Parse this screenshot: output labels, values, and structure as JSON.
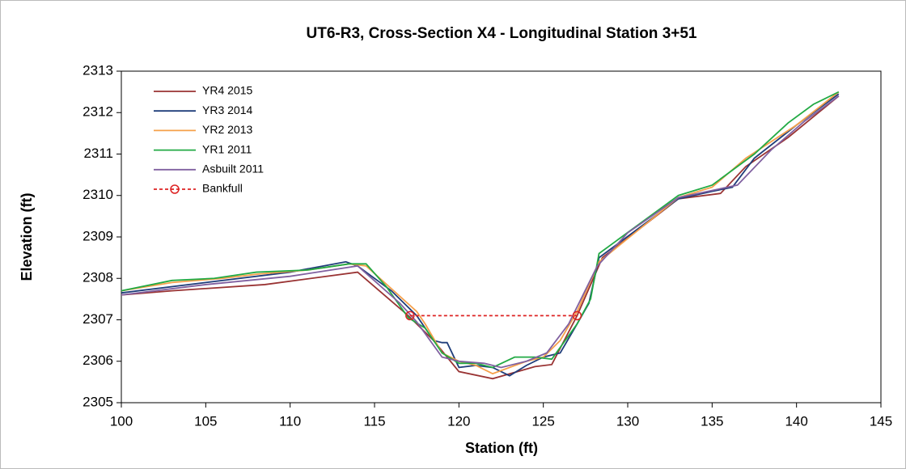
{
  "chart_data": {
    "type": "line",
    "title": "UT6-R3, Cross-Section X4 - Longitudinal Station 3+51",
    "xlabel": "Station (ft)",
    "ylabel": "Elevation (ft)",
    "xlim": [
      100,
      145
    ],
    "xticks": [
      100,
      105,
      110,
      115,
      120,
      125,
      130,
      135,
      140,
      145
    ],
    "ylim": [
      2305,
      2313
    ],
    "yticks": [
      2305,
      2306,
      2307,
      2308,
      2309,
      2310,
      2311,
      2312,
      2313
    ],
    "legend": "upper left",
    "series": [
      {
        "name": "YR4 2015",
        "color": "#993333",
        "x": [
          100,
          103,
          108.5,
          114,
          117,
          118.5,
          120,
          122,
          124.5,
          125.5,
          127,
          128.5,
          133,
          135.5,
          137,
          139.5,
          142.5
        ],
        "values": [
          2307.6,
          2307.7,
          2307.85,
          2308.15,
          2307.1,
          2306.5,
          2305.75,
          2305.58,
          2305.87,
          2305.92,
          2307.1,
          2308.5,
          2309.92,
          2310.05,
          2310.7,
          2311.4,
          2312.4
        ]
      },
      {
        "name": "YR3 2014",
        "color": "#1f3d7a",
        "x": [
          100,
          105,
          110,
          113.3,
          114,
          116,
          117.5,
          118.5,
          119,
          119.3,
          120,
          121,
          122,
          123,
          124,
          125,
          126,
          127,
          127.7,
          128.3,
          133,
          135,
          136.2,
          137.5,
          140,
          142.5
        ],
        "values": [
          2307.65,
          2307.9,
          2308.15,
          2308.4,
          2308.3,
          2307.7,
          2307.1,
          2306.5,
          2306.45,
          2306.45,
          2305.85,
          2305.9,
          2305.85,
          2305.65,
          2305.9,
          2306.1,
          2306.2,
          2306.9,
          2307.4,
          2308.5,
          2309.92,
          2310.1,
          2310.2,
          2310.9,
          2311.7,
          2312.45
        ]
      },
      {
        "name": "YR2 2013",
        "color": "#f5a04a",
        "x": [
          100,
          103,
          106,
          108,
          111,
          113.5,
          114.5,
          117.5,
          118,
          119,
          120,
          121,
          122,
          124,
          125,
          126,
          127,
          128.3,
          133,
          135,
          137,
          140,
          142.5
        ],
        "values": [
          2307.7,
          2307.9,
          2308.0,
          2308.1,
          2308.2,
          2308.35,
          2308.3,
          2307.2,
          2306.9,
          2306.2,
          2306.0,
          2305.9,
          2305.7,
          2306.0,
          2306.1,
          2306.5,
          2307.2,
          2308.4,
          2309.95,
          2310.2,
          2310.9,
          2311.7,
          2312.5
        ]
      },
      {
        "name": "YR1 2011",
        "color": "#22aa44",
        "x": [
          100,
          103,
          105.5,
          108,
          111,
          113.5,
          114.5,
          115.7,
          117,
          118,
          119,
          120,
          121,
          122,
          123.3,
          124.5,
          125.5,
          127,
          127.8,
          128.3,
          133,
          135,
          137.5,
          139.5,
          141,
          142.5
        ],
        "values": [
          2307.7,
          2307.95,
          2308.0,
          2308.15,
          2308.2,
          2308.35,
          2308.35,
          2307.8,
          2307.05,
          2306.8,
          2306.2,
          2305.95,
          2305.95,
          2305.85,
          2306.1,
          2306.1,
          2306.05,
          2306.9,
          2307.5,
          2308.6,
          2310.0,
          2310.25,
          2311.0,
          2311.75,
          2312.2,
          2312.5
        ]
      },
      {
        "name": "Asbuilt 2011",
        "color": "#8060a0",
        "x": [
          100,
          105,
          110,
          114,
          116.5,
          117.5,
          119,
          120,
          121.5,
          122.5,
          124,
          125.2,
          126.5,
          128.2,
          130,
          133,
          136.5,
          138.5,
          140.5,
          142.5
        ],
        "values": [
          2307.6,
          2307.85,
          2308.05,
          2308.3,
          2307.4,
          2306.95,
          2306.1,
          2306.0,
          2305.95,
          2305.85,
          2306.0,
          2306.2,
          2306.9,
          2308.3,
          2309.1,
          2309.95,
          2310.25,
          2311.1,
          2311.8,
          2312.4
        ]
      },
      {
        "name": "Bankfull",
        "color": "#dd2222",
        "dashed": true,
        "marker": "circle",
        "x": [
          117.1,
          127
        ],
        "values": [
          2307.1,
          2307.1
        ]
      }
    ]
  }
}
